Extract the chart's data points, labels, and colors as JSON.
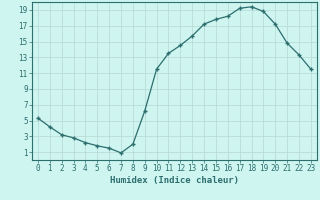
{
  "x": [
    0,
    1,
    2,
    3,
    4,
    5,
    6,
    7,
    8,
    9,
    10,
    11,
    12,
    13,
    14,
    15,
    16,
    17,
    18,
    19,
    20,
    21,
    22,
    23
  ],
  "y": [
    5.3,
    4.2,
    3.2,
    2.8,
    2.2,
    1.8,
    1.5,
    0.9,
    2.0,
    6.2,
    11.5,
    13.5,
    14.5,
    15.7,
    17.2,
    17.8,
    18.2,
    19.2,
    19.4,
    18.8,
    17.2,
    14.8,
    13.3,
    11.5
  ],
  "line_color": "#2d6e6e",
  "marker": "+",
  "background_color": "#cef5f0",
  "grid_color_major": "#b8d8d4",
  "grid_color_minor": "#daecea",
  "xlabel": "Humidex (Indice chaleur)",
  "xlim": [
    -0.5,
    23.5
  ],
  "ylim": [
    0,
    20
  ],
  "yticks": [
    1,
    3,
    5,
    7,
    9,
    11,
    13,
    15,
    17,
    19
  ],
  "xticks": [
    0,
    1,
    2,
    3,
    4,
    5,
    6,
    7,
    8,
    9,
    10,
    11,
    12,
    13,
    14,
    15,
    16,
    17,
    18,
    19,
    20,
    21,
    22,
    23
  ],
  "label_fontsize": 6.5,
  "tick_fontsize": 5.5,
  "marker_size": 3.5,
  "line_width": 0.9
}
